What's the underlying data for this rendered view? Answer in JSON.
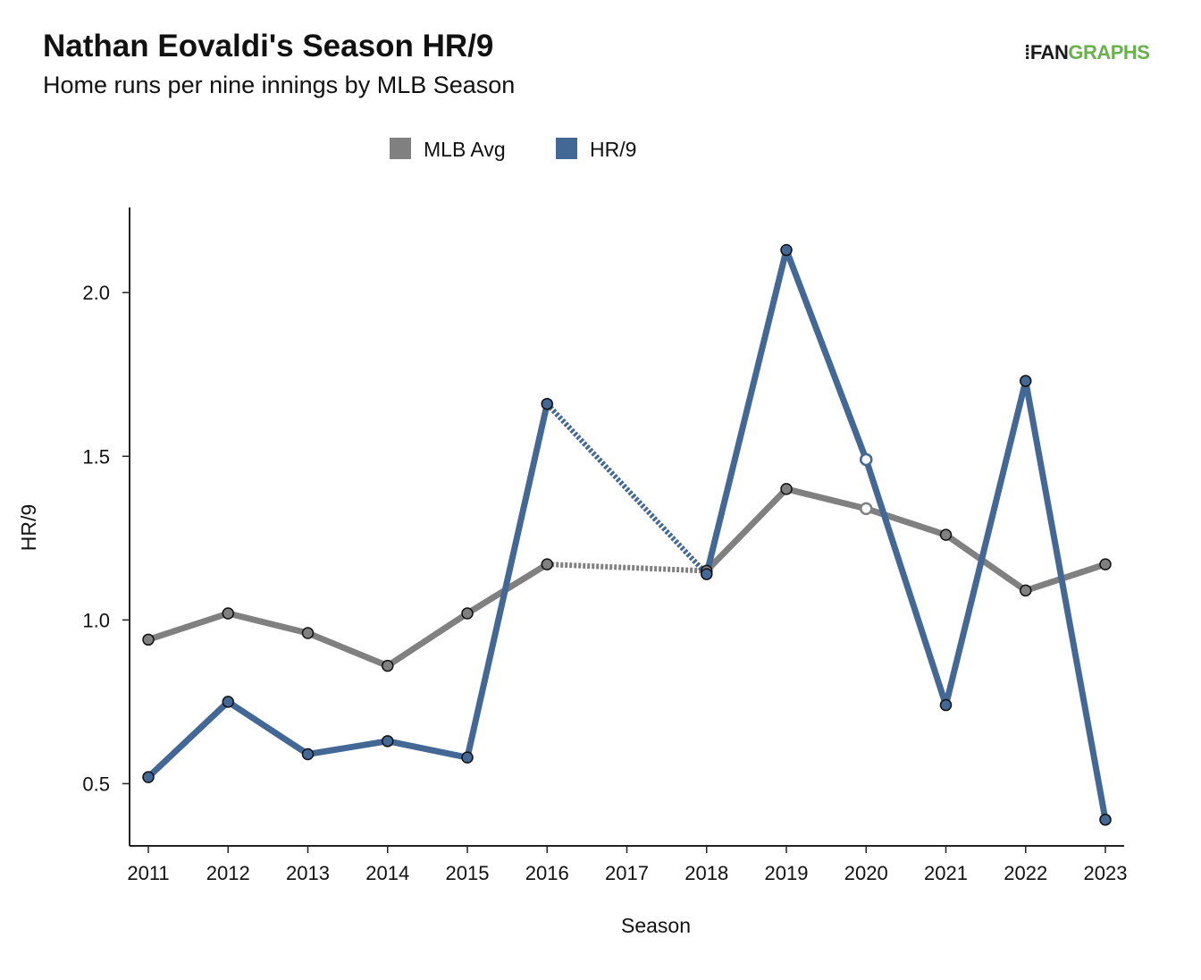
{
  "header": {
    "title": "Nathan Eovaldi's Season HR/9",
    "subtitle": "Home runs per nine innings by MLB Season"
  },
  "logo": {
    "mark": "⁞",
    "fan": "FAN",
    "graphs": "GRAPHS"
  },
  "colors": {
    "player": "#436896",
    "mlb": "#808080",
    "axis": "#222222"
  },
  "chart_data": {
    "type": "line",
    "xlabel": "Season",
    "ylabel": "HR/9",
    "categories": [
      "2011",
      "2012",
      "2013",
      "2014",
      "2015",
      "2016",
      "2017",
      "2018",
      "2019",
      "2020",
      "2021",
      "2022",
      "2023"
    ],
    "ylim": [
      0.31,
      2.26
    ],
    "yticks": [
      0.5,
      1.0,
      1.5,
      2.0
    ],
    "ytick_labels": [
      "0.5",
      "1.0",
      "1.5",
      "2.0"
    ],
    "grid": false,
    "legend_position": "top-center",
    "legend": [
      "MLB Avg",
      "HR/9"
    ],
    "gap_between": [
      "2016",
      "2018"
    ],
    "series": [
      {
        "name": "MLB Avg",
        "color": "#808080",
        "values": [
          0.94,
          1.02,
          0.96,
          0.86,
          1.02,
          1.17,
          null,
          1.15,
          1.4,
          1.34,
          1.26,
          1.09,
          1.17
        ],
        "hollow": [
          "2020"
        ]
      },
      {
        "name": "HR/9",
        "color": "#436896",
        "values": [
          0.52,
          0.75,
          0.59,
          0.63,
          0.58,
          1.66,
          null,
          1.14,
          2.13,
          1.49,
          0.74,
          1.73,
          0.39
        ],
        "hollow": [
          "2020"
        ]
      }
    ]
  }
}
